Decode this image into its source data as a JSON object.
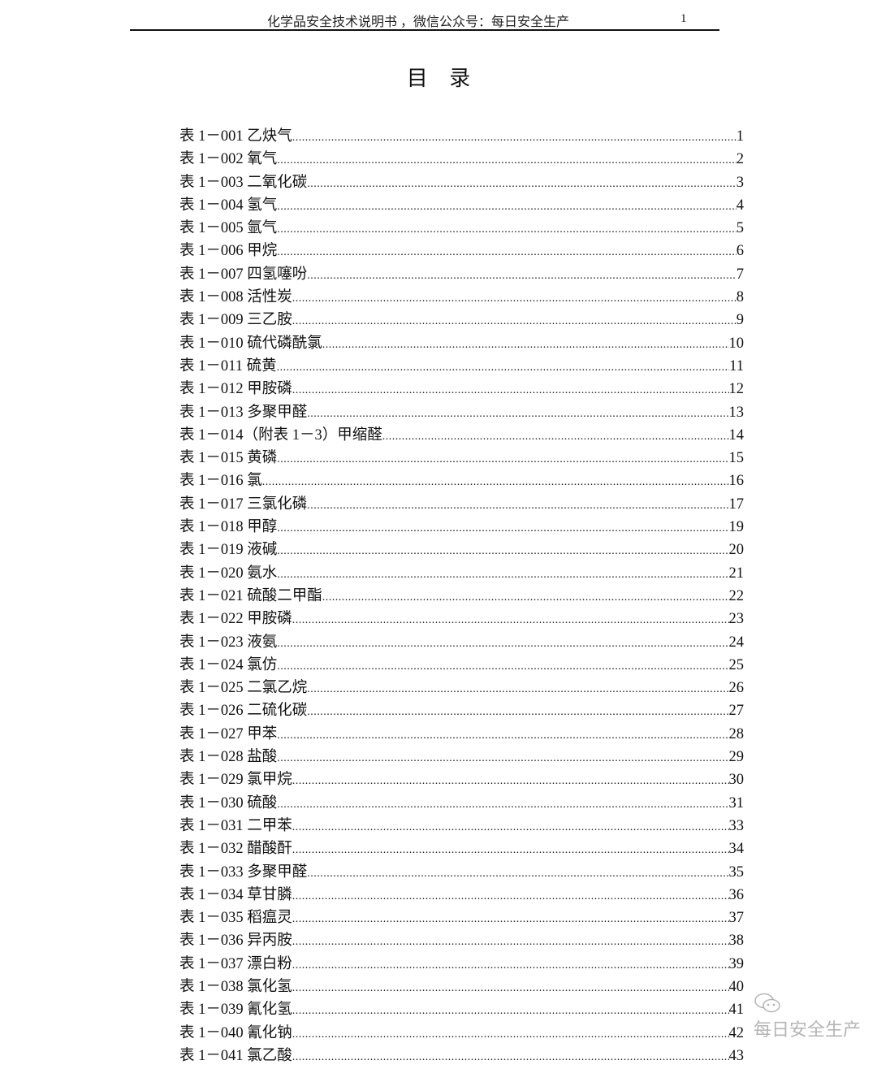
{
  "header": {
    "title": "化学品安全技术说明书 ，微信公众号：每日安全生产",
    "page_number": "1"
  },
  "title": "目 录",
  "toc": [
    {
      "label": "表 1－001  乙炔气",
      "page": "1"
    },
    {
      "label": "表 1－002  氧气",
      "page": "2"
    },
    {
      "label": "表 1－003  二氧化碳",
      "page": "3"
    },
    {
      "label": "表 1－004  氢气",
      "page": "4"
    },
    {
      "label": "表 1－005  氩气",
      "page": "5"
    },
    {
      "label": "表 1－006  甲烷",
      "page": "6"
    },
    {
      "label": "表 1－007  四氢噻吩",
      "page": "7"
    },
    {
      "label": "表 1－008  活性炭",
      "page": "8"
    },
    {
      "label": "表 1－009  三乙胺",
      "page": "9"
    },
    {
      "label": "表 1－010  硫代磷酰氯",
      "page": "10"
    },
    {
      "label": "表 1－011    硫黄",
      "page": "11"
    },
    {
      "label": "表 1－012  甲胺磷",
      "page": "12"
    },
    {
      "label": "表 1－013    多聚甲醛",
      "page": "13"
    },
    {
      "label": "表 1－014（附表 1－3）甲缩醛",
      "page": "14"
    },
    {
      "label": "表 1－015    黄磷",
      "page": "15"
    },
    {
      "label": "表 1－016    氯",
      "page": "16"
    },
    {
      "label": "表 1－017  三氯化磷",
      "page": "17"
    },
    {
      "label": "表 1－018  甲醇",
      "page": "19"
    },
    {
      "label": "表 1－019  液碱",
      "page": "20"
    },
    {
      "label": "表 1－020  氨水",
      "page": "21"
    },
    {
      "label": "表 1－021  硫酸二甲酯",
      "page": "22"
    },
    {
      "label": "表 1－022  甲胺磷",
      "page": "23"
    },
    {
      "label": "表 1－023  液氨",
      "page": "24"
    },
    {
      "label": "表 1－024  氯仿",
      "page": "25"
    },
    {
      "label": "表 1－025  二氯乙烷",
      "page": "26"
    },
    {
      "label": "表 1－026  二硫化碳",
      "page": "27"
    },
    {
      "label": "表 1－027  甲苯",
      "page": "28"
    },
    {
      "label": "表 1－028  盐酸",
      "page": "29"
    },
    {
      "label": "表 1－029  氯甲烷",
      "page": "30"
    },
    {
      "label": "表 1－030  硫酸",
      "page": "31"
    },
    {
      "label": "表 1－031  二甲苯",
      "page": "33"
    },
    {
      "label": "表 1－032  醋酸酐",
      "page": "34"
    },
    {
      "label": "表 1－033  多聚甲醛",
      "page": "35"
    },
    {
      "label": "表 1－034  草甘膦",
      "page": "36"
    },
    {
      "label": "表 1－035  稻瘟灵",
      "page": "37"
    },
    {
      "label": "表 1－036  异丙胺",
      "page": "38"
    },
    {
      "label": "表 1－037  漂白粉",
      "page": "39"
    },
    {
      "label": "表 1－038  氯化氢",
      "page": "40"
    },
    {
      "label": "表 1－039  氰化氢",
      "page": "41"
    },
    {
      "label": "表 1－040  氰化钠",
      "page": "42"
    },
    {
      "label": "表 1－041  氯乙酸",
      "page": "43"
    }
  ],
  "watermark": {
    "text": "每日安全生产",
    "icon": "wechat-icon"
  }
}
